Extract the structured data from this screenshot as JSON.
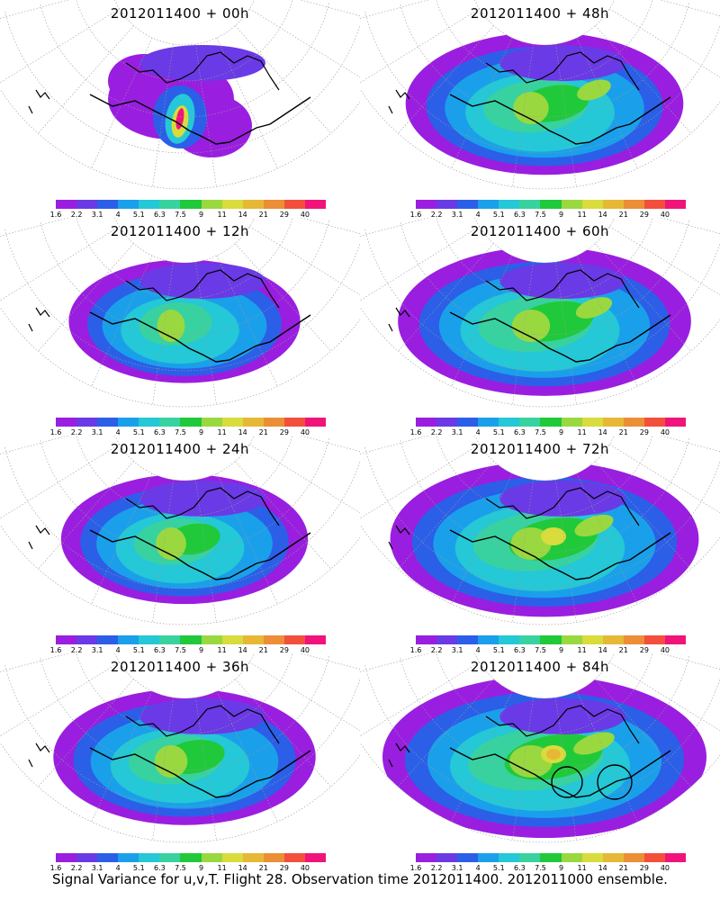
{
  "panels": [
    {
      "title": "2012011400 + 00h",
      "lead": 0
    },
    {
      "title": "2012011400 + 48h",
      "lead": 48
    },
    {
      "title": "2012011400 + 12h",
      "lead": 12
    },
    {
      "title": "2012011400 + 60h",
      "lead": 60
    },
    {
      "title": "2012011400 + 24h",
      "lead": 24
    },
    {
      "title": "2012011400 + 72h",
      "lead": 72
    },
    {
      "title": "2012011400 + 36h",
      "lead": 36
    },
    {
      "title": "2012011400 + 84h",
      "lead": 84
    }
  ],
  "colorbar": {
    "labels": [
      "1.6",
      "2.2",
      "3.1",
      "4",
      "5.1",
      "6.3",
      "7.5",
      "9",
      "11",
      "14",
      "21",
      "29",
      "40"
    ],
    "colors": [
      "#9a1ee0",
      "#6a3ae6",
      "#2b5fe8",
      "#1aa0ea",
      "#24c8d6",
      "#38d2a0",
      "#20c93a",
      "#9ad840",
      "#d8dc3c",
      "#e6b836",
      "#ec8e36",
      "#f2503c",
      "#f0147a"
    ]
  },
  "caption": "Signal Variance for u,v,T. Flight 28. Observation time 2012011400. 2012011000 ensemble."
}
